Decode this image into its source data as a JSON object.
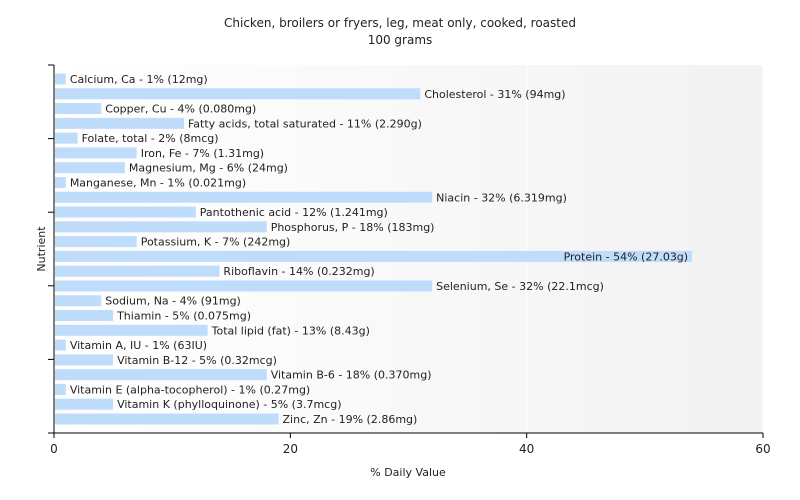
{
  "chart_data": {
    "type": "bar",
    "orientation": "horizontal",
    "title": "Chicken, broilers or fryers, leg, meat only, cooked, roasted",
    "subtitle": "100 grams",
    "xlabel": "% Daily Value",
    "ylabel": "Nutrient",
    "xlim": [
      0,
      60
    ],
    "xticks": [
      0,
      20,
      40,
      60
    ],
    "grid": true,
    "colors": {
      "bar": "#bfdcfb",
      "plot_background_left": "#ffffff",
      "plot_background_right": "#f2f2f2",
      "grid": "#ffffff",
      "axis": "#000000",
      "text": "#222222"
    },
    "bars": [
      {
        "label": "Calcium, Ca - 1% (12mg)",
        "value": 1
      },
      {
        "label": "Cholesterol - 31% (94mg)",
        "value": 31
      },
      {
        "label": "Copper, Cu - 4% (0.080mg)",
        "value": 4
      },
      {
        "label": "Fatty acids, total saturated - 11% (2.290g)",
        "value": 11
      },
      {
        "label": "Folate, total - 2% (8mcg)",
        "value": 2
      },
      {
        "label": "Iron, Fe - 7% (1.31mg)",
        "value": 7
      },
      {
        "label": "Magnesium, Mg - 6% (24mg)",
        "value": 6
      },
      {
        "label": "Manganese, Mn - 1% (0.021mg)",
        "value": 1
      },
      {
        "label": "Niacin - 32% (6.319mg)",
        "value": 32
      },
      {
        "label": "Pantothenic acid - 12% (1.241mg)",
        "value": 12
      },
      {
        "label": "Phosphorus, P - 18% (183mg)",
        "value": 18
      },
      {
        "label": "Potassium, K - 7% (242mg)",
        "value": 7
      },
      {
        "label": "Protein - 54% (27.03g)",
        "value": 54
      },
      {
        "label": "Riboflavin - 14% (0.232mg)",
        "value": 14
      },
      {
        "label": "Selenium, Se - 32% (22.1mcg)",
        "value": 32
      },
      {
        "label": "Sodium, Na - 4% (91mg)",
        "value": 4
      },
      {
        "label": "Thiamin - 5% (0.075mg)",
        "value": 5
      },
      {
        "label": "Total lipid (fat) - 13% (8.43g)",
        "value": 13
      },
      {
        "label": "Vitamin A, IU - 1% (63IU)",
        "value": 1
      },
      {
        "label": "Vitamin B-12 - 5% (0.32mcg)",
        "value": 5
      },
      {
        "label": "Vitamin B-6 - 18% (0.370mg)",
        "value": 18
      },
      {
        "label": "Vitamin E (alpha-tocopherol) - 1% (0.27mg)",
        "value": 1
      },
      {
        "label": "Vitamin K (phylloquinone) - 5% (3.7mcg)",
        "value": 5
      },
      {
        "label": "Zinc, Zn - 19% (2.86mg)",
        "value": 19
      }
    ]
  }
}
